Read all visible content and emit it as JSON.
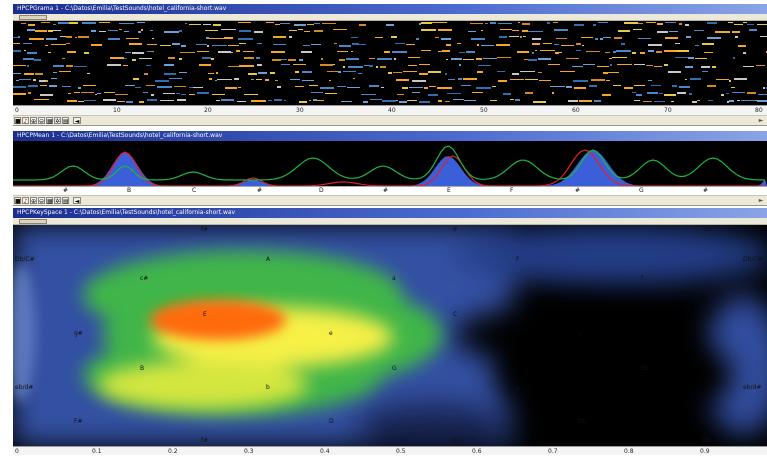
{
  "hpcpgram": {
    "title": "HPCPGrama 1 - C:\\Datos\\Emilia\\TestSounds\\hotel_california-short.wav",
    "ticks": [
      "0",
      "10",
      "20",
      "30",
      "40",
      "50",
      "60",
      "70",
      "80"
    ]
  },
  "hpcpmean": {
    "title": "HPCPMean 1 - C:\\Datos\\Emilia\\TestSounds\\hotel_california-short.wav",
    "notes": [
      "#",
      "B",
      "C",
      "#",
      "D",
      "#",
      "E",
      "F",
      "#",
      "G",
      "#"
    ]
  },
  "keyspace": {
    "title": "HPCPKeySpace 1 - C:\\Datos\\Emilia\\TestSounds\\hotel_california-short.wav",
    "labels": {
      "fsharp_top": "f#",
      "d_top": "d",
      "bb_top": "bb",
      "dbcs_left": "Db/C#",
      "A": "A",
      "F": "F",
      "dbcs_right": "Db/C#",
      "csharp": "c#",
      "a": "a",
      "f": "f",
      "E": "E",
      "C": "C",
      "Ab": "Ab",
      "gsharp": "g#",
      "e": "e",
      "c": "c",
      "B": "B",
      "G": "G",
      "Eb": "Eb",
      "ebds_left": "eb/d#",
      "b": "b",
      "g": "g",
      "ebds_right": "eb/d#",
      "Fsharp": "F#",
      "D": "D",
      "Bb": "Bb",
      "fsharp_bottom": "f#",
      "d_bottom": "d",
      "bb_bottom": "bb"
    },
    "ticks": [
      "0",
      "0.1",
      "0.2",
      "0.3",
      "0.4",
      "0.5",
      "0.6",
      "0.7",
      "0.8",
      "0.9"
    ]
  },
  "toolbar": {
    "icons": [
      "square-icon",
      "record-icon",
      "zoom-in-icon",
      "zoom-out-icon",
      "grid-icon",
      "settings-icon",
      "chart-icon"
    ],
    "glyphs": [
      "■",
      "♪",
      "⊕",
      "⊖",
      "▦",
      "✲",
      "▤"
    ],
    "left_arrow": "◄",
    "right_arrow": "►"
  },
  "colors": {
    "heat_orange": "#ff6a10",
    "heat_yellow": "#f6f046",
    "heat_green": "#3fb54a",
    "heat_blue": "#4a6fd6",
    "mean_fill": "#3b5fd8",
    "line_red": "#e0202a",
    "line_green": "#1eb444"
  }
}
